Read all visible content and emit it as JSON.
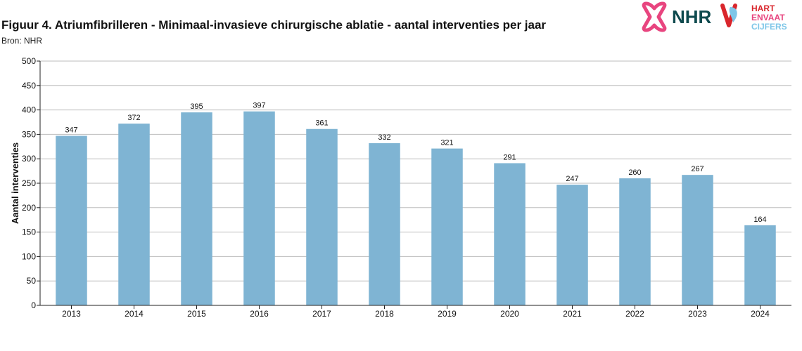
{
  "header": {
    "title": "Figuur 4. Atriumfibrilleren - Minimaal-invasieve chirurgische ablatie - aantal interventies per jaar",
    "source": "Bron: NHR"
  },
  "logos": {
    "nhr_text": "NHR",
    "hart_line1": "HART",
    "hart_line2": "ENVAAT",
    "hart_line3": "CIJFERS",
    "nhr_color": "#e8457f",
    "nhr_text_color": "#0e4a4e",
    "hart_red": "#d9262c",
    "hart_blue": "#7ec6e8"
  },
  "chart_data": {
    "type": "bar",
    "title": "Figuur 4. Atriumfibrilleren - Minimaal-invasieve chirurgische ablatie - aantal interventies per jaar",
    "xlabel": "",
    "ylabel": "Aantal interventies",
    "categories": [
      "2013",
      "2014",
      "2015",
      "2016",
      "2017",
      "2018",
      "2019",
      "2020",
      "2021",
      "2022",
      "2023",
      "2024"
    ],
    "values": [
      347,
      372,
      395,
      397,
      361,
      332,
      321,
      291,
      247,
      260,
      267,
      164
    ],
    "ylim": [
      0,
      500
    ],
    "yticks": [
      0,
      50,
      100,
      150,
      200,
      250,
      300,
      350,
      400,
      450,
      500
    ],
    "grid": true,
    "bar_color": "#7fb4d3"
  }
}
